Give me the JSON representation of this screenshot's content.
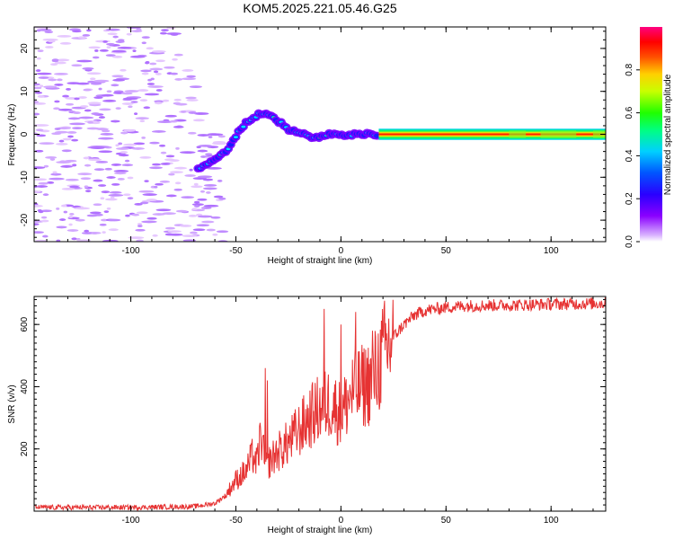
{
  "title": "KOM5.2025.221.05.46.G25",
  "chart_data": [
    {
      "type": "heatmap",
      "name": "spectrogram",
      "xlabel": "Height of straight line (km)",
      "ylabel": "Frequency (Hz)",
      "xlim": [
        -146,
        126
      ],
      "ylim": [
        -25,
        25
      ],
      "xticks": [
        -100,
        -50,
        0,
        50,
        100
      ],
      "yticks": [
        -20,
        -10,
        0,
        10,
        20
      ],
      "colorbar": {
        "label": "Normalized spectral amplitude",
        "range": [
          0,
          1
        ],
        "ticks": [
          0.0,
          0.2,
          0.4,
          0.6,
          0.8
        ],
        "tick_labels": [
          "0.0",
          "0.2",
          "0.4",
          "0.6",
          "0.8"
        ]
      },
      "ridge": {
        "description_points": [
          [
            -68,
            -8
          ],
          [
            -55,
            -4
          ],
          [
            -45,
            3
          ],
          [
            -38,
            5
          ],
          [
            -32,
            4
          ],
          [
            -25,
            1
          ],
          [
            -18,
            0
          ],
          [
            -12,
            -1
          ],
          [
            -5,
            0
          ],
          [
            0,
            0
          ],
          [
            10,
            0
          ],
          [
            17,
            0
          ],
          [
            126,
            0
          ]
        ],
        "strong_from_km": 18
      }
    },
    {
      "type": "line",
      "name": "snr",
      "xlabel": "Height of straight line (km)",
      "ylabel": "SNR (v/v)",
      "xlim": [
        -146,
        126
      ],
      "ylim": [
        0,
        690
      ],
      "xticks": [
        -100,
        -50,
        0,
        50,
        100
      ],
      "yticks": [
        200,
        400,
        600
      ],
      "color": "#e63232",
      "series": [
        {
          "name": "SNR",
          "x": [
            -146,
            -100,
            -70,
            -60,
            -55,
            -50,
            -45,
            -42,
            -40,
            -38,
            -36,
            -34,
            -30,
            -25,
            -20,
            -15,
            -10,
            -5,
            0,
            5,
            10,
            15,
            20,
            25,
            30,
            35,
            40,
            50,
            60,
            80,
            100,
            126
          ],
          "values": [
            12,
            12,
            15,
            25,
            50,
            100,
            130,
            180,
            150,
            250,
            140,
            160,
            190,
            220,
            260,
            300,
            330,
            350,
            310,
            380,
            400,
            420,
            500,
            560,
            600,
            630,
            645,
            655,
            660,
            662,
            665,
            668
          ],
          "spikes": [
            [
              -36,
              460
            ],
            [
              -35,
              420
            ],
            [
              -8,
              650
            ],
            [
              0,
              600
            ],
            [
              7,
              640
            ],
            [
              15,
              580
            ]
          ]
        }
      ]
    }
  ]
}
